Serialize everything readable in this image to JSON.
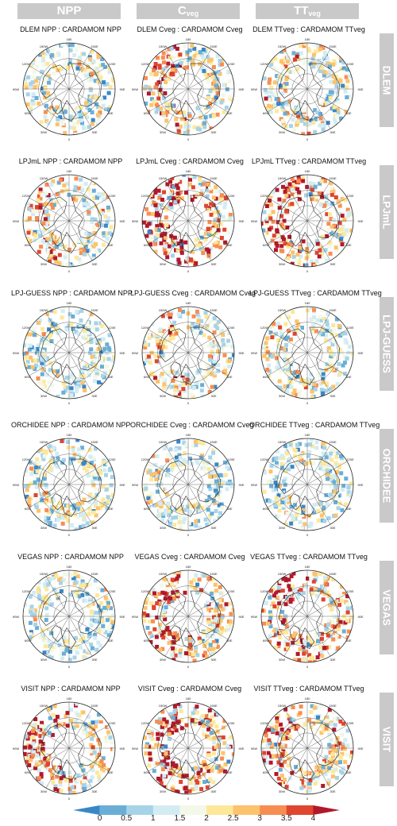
{
  "columns": [
    {
      "main": "NPP",
      "sub": ""
    },
    {
      "main": "C",
      "sub": "veg"
    },
    {
      "main": "TT",
      "sub": "veg"
    }
  ],
  "rows": [
    {
      "model": "DLEM",
      "titles": [
        "DLEM NPP : CARDAMOM NPP",
        "DLEM Cveg : CARDAMOM Cveg",
        "DLEM TTveg : CARDAMOM TTveg"
      ]
    },
    {
      "model": "LPJmL",
      "titles": [
        "LPJmL NPP : CARDAMOM NPP",
        "LPJmL Cveg : CARDAMOM Cveg",
        "LPJmL TTveg : CARDAMOM TTveg"
      ]
    },
    {
      "model": "LPJ-GUESS",
      "titles": [
        "LPJ-GUESS NPP : CARDAMOM NPP",
        "LPJ-GUESS Cveg : CARDAMOM Cveg",
        "LPJ-GUESS TTveg : CARDAMOM TTveg"
      ]
    },
    {
      "model": "ORCHIDEE",
      "titles": [
        "ORCHIDEE NPP : CARDAMOM NPP",
        "ORCHIDEE Cveg : CARDAMOM Cveg",
        "ORCHIDEE TTveg : CARDAMOM TTveg"
      ]
    },
    {
      "model": "VEGAS",
      "titles": [
        "VEGAS NPP : CARDAMOM NPP",
        "VEGAS Cveg : CARDAMOM Cveg",
        "VEGAS TTveg : CARDAMOM TTveg"
      ]
    },
    {
      "model": "VISIT",
      "titles": [
        "VISIT NPP : CARDAMOM NPP",
        "VISIT Cveg : CARDAMOM Cveg",
        "VISIT TTveg : CARDAMOM TTveg"
      ]
    }
  ],
  "map_labels": {
    "top": "180",
    "bottom": "0",
    "left": "90W",
    "right": "90E",
    "upper_left": "120W",
    "upper_left_2": "150W",
    "upper_right": "150E",
    "upper_right_2": "120E",
    "lower_left": "60W",
    "lower_left_2": "30W",
    "lower_right": "30E",
    "lower_right_2": "60E"
  },
  "colorbar": {
    "ticks": [
      "0",
      "0.5",
      "1",
      "1.5",
      "2",
      "2.5",
      "3",
      "3.5",
      "4"
    ],
    "colors": [
      "#3a87c8",
      "#6aaed6",
      "#a6d3e8",
      "#d3ecf3",
      "#f3f8e8",
      "#fde89a",
      "#fdc26c",
      "#f88d52",
      "#e0452f",
      "#b2182b"
    ]
  },
  "panel_intensity": [
    [
      0.25,
      0.45,
      0.35
    ],
    [
      0.45,
      0.75,
      0.7
    ],
    [
      0.2,
      0.4,
      0.3
    ],
    [
      0.25,
      0.2,
      0.2
    ],
    [
      0.2,
      0.65,
      0.7
    ],
    [
      0.55,
      0.85,
      0.65
    ]
  ]
}
